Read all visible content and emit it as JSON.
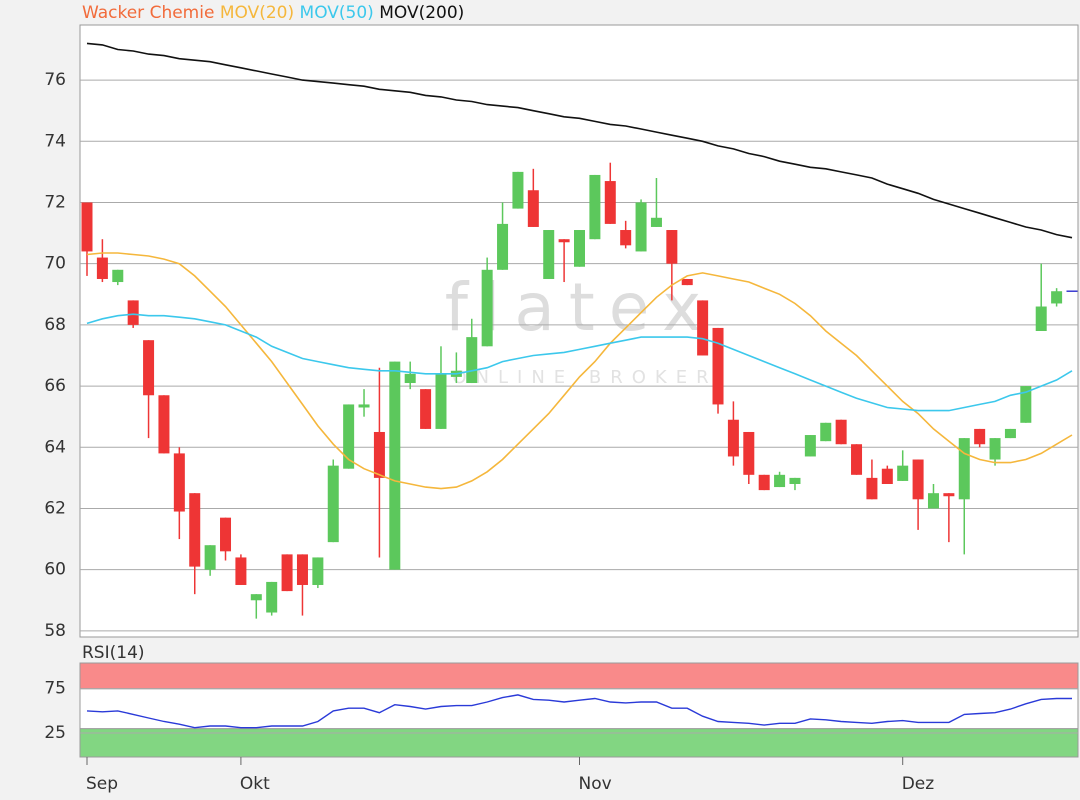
{
  "chart_data": [
    {
      "type": "candlestick",
      "watermark": {
        "text": "flatex",
        "subtext": "ONLINE BROKER"
      },
      "ohlc": {
        "name": "Wacker Chemie",
        "color": "#f26b3a",
        "up_color": "#5cc85c",
        "down_color": "#ee3535",
        "doji_color": "#3a3ad0",
        "open": [
          72.0,
          70.2,
          69.4,
          68.8,
          67.5,
          65.7,
          63.8,
          62.5,
          60.0,
          61.7,
          60.4,
          59.0,
          58.6,
          60.5,
          60.5,
          59.5,
          60.9,
          63.3,
          65.3,
          64.5,
          60.0,
          66.1,
          65.9,
          64.6,
          66.3,
          66.1,
          67.3,
          69.8,
          71.8,
          72.4,
          69.5,
          70.8,
          69.9,
          70.8,
          72.7,
          71.1,
          70.4,
          71.2,
          71.1,
          69.5,
          68.8,
          67.9,
          64.9,
          64.5,
          63.1,
          62.7,
          62.8,
          63.7,
          64.2,
          64.9,
          64.1,
          63.0,
          63.3,
          62.9,
          63.6,
          62.0,
          62.5,
          62.3,
          64.6,
          63.6,
          64.3,
          64.8,
          67.8,
          68.7,
          69.1
        ],
        "high": [
          72.0,
          70.8,
          69.8,
          68.8,
          67.5,
          65.7,
          64.0,
          62.5,
          60.8,
          61.7,
          60.5,
          59.2,
          59.6,
          60.5,
          60.5,
          60.4,
          63.6,
          65.4,
          65.9,
          66.6,
          66.8,
          66.8,
          65.9,
          67.3,
          67.1,
          68.2,
          70.2,
          72.0,
          73.0,
          73.1,
          71.1,
          70.8,
          71.1,
          72.9,
          73.3,
          71.4,
          72.1,
          72.8,
          71.1,
          69.5,
          68.8,
          67.9,
          65.5,
          64.5,
          63.1,
          63.2,
          63.0,
          64.4,
          64.8,
          64.9,
          64.1,
          63.6,
          63.4,
          63.9,
          63.6,
          62.8,
          62.5,
          64.3,
          64.6,
          64.3,
          64.6,
          66.0,
          70.0,
          69.2,
          69.1
        ],
        "low": [
          69.6,
          69.4,
          69.3,
          67.9,
          64.3,
          63.8,
          61.0,
          59.2,
          59.8,
          60.3,
          59.5,
          58.4,
          58.5,
          59.3,
          58.5,
          59.4,
          60.9,
          63.3,
          65.0,
          60.4,
          60.0,
          65.9,
          64.6,
          64.6,
          66.1,
          66.1,
          67.3,
          69.8,
          71.8,
          71.2,
          69.5,
          69.4,
          69.9,
          70.8,
          71.3,
          70.5,
          70.4,
          71.2,
          68.8,
          69.3,
          67.0,
          65.1,
          63.4,
          62.8,
          62.6,
          62.7,
          62.6,
          63.7,
          64.2,
          64.1,
          63.1,
          62.3,
          62.8,
          62.9,
          61.3,
          62.0,
          60.9,
          60.5,
          64.0,
          63.4,
          64.3,
          64.8,
          67.8,
          68.6,
          69.1
        ],
        "close": [
          70.4,
          69.5,
          69.8,
          68.0,
          65.7,
          63.8,
          61.9,
          60.1,
          60.8,
          60.6,
          59.5,
          59.2,
          59.6,
          59.3,
          59.5,
          60.4,
          63.4,
          65.4,
          65.4,
          63.0,
          66.8,
          66.4,
          64.6,
          66.4,
          66.5,
          67.6,
          69.8,
          71.3,
          73.0,
          71.2,
          71.1,
          70.7,
          71.1,
          72.9,
          71.3,
          70.6,
          72.0,
          71.5,
          70.0,
          69.3,
          67.0,
          65.4,
          63.7,
          63.1,
          62.6,
          63.1,
          63.0,
          64.4,
          64.8,
          64.1,
          63.1,
          62.3,
          62.8,
          63.4,
          62.3,
          62.5,
          62.4,
          64.3,
          64.1,
          64.3,
          64.6,
          66.0,
          68.6,
          69.1,
          69.1
        ]
      },
      "series": [
        {
          "name": "MOV(20)",
          "color": "#f5b73c",
          "values": [
            70.3,
            70.35,
            70.35,
            70.3,
            70.25,
            70.15,
            70.0,
            69.6,
            69.1,
            68.6,
            68.0,
            67.4,
            66.8,
            66.1,
            65.4,
            64.7,
            64.1,
            63.6,
            63.3,
            63.1,
            62.9,
            62.8,
            62.7,
            62.65,
            62.7,
            62.9,
            63.2,
            63.6,
            64.1,
            64.6,
            65.1,
            65.7,
            66.3,
            66.8,
            67.4,
            67.9,
            68.4,
            68.9,
            69.3,
            69.6,
            69.7,
            69.6,
            69.5,
            69.4,
            69.2,
            69.0,
            68.7,
            68.3,
            67.8,
            67.4,
            67.0,
            66.5,
            66.0,
            65.5,
            65.1,
            64.6,
            64.2,
            63.8,
            63.6,
            63.5,
            63.5,
            63.6,
            63.8,
            64.1,
            64.4
          ]
        },
        {
          "name": "MOV(50)",
          "color": "#3cc8ec",
          "values": [
            68.05,
            68.2,
            68.3,
            68.35,
            68.3,
            68.3,
            68.25,
            68.2,
            68.1,
            68.0,
            67.8,
            67.6,
            67.3,
            67.1,
            66.9,
            66.8,
            66.7,
            66.6,
            66.55,
            66.5,
            66.5,
            66.45,
            66.4,
            66.4,
            66.4,
            66.5,
            66.6,
            66.8,
            66.9,
            67.0,
            67.05,
            67.1,
            67.2,
            67.3,
            67.4,
            67.5,
            67.6,
            67.6,
            67.6,
            67.6,
            67.55,
            67.4,
            67.2,
            67.0,
            66.8,
            66.6,
            66.4,
            66.2,
            66.0,
            65.8,
            65.6,
            65.45,
            65.3,
            65.25,
            65.2,
            65.2,
            65.2,
            65.3,
            65.4,
            65.5,
            65.7,
            65.8,
            66.0,
            66.2,
            66.5
          ]
        },
        {
          "name": "MOV(200)",
          "color": "#111111",
          "values": [
            77.2,
            77.15,
            77.0,
            76.95,
            76.85,
            76.8,
            76.7,
            76.65,
            76.6,
            76.5,
            76.4,
            76.3,
            76.2,
            76.1,
            76.0,
            75.95,
            75.9,
            75.85,
            75.8,
            75.7,
            75.65,
            75.6,
            75.5,
            75.45,
            75.35,
            75.3,
            75.2,
            75.15,
            75.1,
            75.0,
            74.9,
            74.8,
            74.75,
            74.65,
            74.55,
            74.5,
            74.4,
            74.3,
            74.2,
            74.1,
            74.0,
            73.85,
            73.75,
            73.6,
            73.5,
            73.35,
            73.25,
            73.15,
            73.1,
            73.0,
            72.9,
            72.8,
            72.6,
            72.45,
            72.3,
            72.1,
            71.95,
            71.8,
            71.65,
            71.5,
            71.35,
            71.2,
            71.1,
            70.95,
            70.85
          ]
        }
      ],
      "ylim": [
        57.8,
        77.8
      ],
      "yticks": [
        58,
        60,
        62,
        64,
        66,
        68,
        70,
        72,
        74,
        76
      ],
      "grid": true
    },
    {
      "type": "line",
      "categories": [
        "Sep",
        null,
        null,
        null,
        null,
        null,
        null,
        null,
        null,
        null,
        "Okt",
        null,
        null,
        null,
        null,
        null,
        null,
        null,
        null,
        null,
        null,
        null,
        null,
        null,
        null,
        null,
        null,
        null,
        null,
        null,
        null,
        null,
        "Nov",
        null,
        null,
        null,
        null,
        null,
        null,
        null,
        null,
        null,
        null,
        null,
        null,
        null,
        null,
        null,
        null,
        null,
        null,
        null,
        null,
        "Dez",
        null,
        null,
        null,
        null,
        null,
        null,
        null,
        null,
        null,
        null,
        null
      ],
      "series": [
        {
          "name": "RSI(14)",
          "color": "#2a3ad8",
          "values": [
            50,
            49,
            50,
            46,
            42,
            38,
            35,
            31,
            33,
            33,
            31,
            31,
            33,
            33,
            33,
            38,
            50,
            53,
            53,
            48,
            57,
            55,
            52,
            55,
            56,
            56,
            60,
            65,
            68,
            63,
            62,
            60,
            62,
            64,
            60,
            59,
            60,
            60,
            53,
            53,
            44,
            38,
            37,
            36,
            34,
            36,
            36,
            41,
            40,
            38,
            37,
            36,
            38,
            39,
            37,
            37,
            37,
            46,
            47,
            48,
            52,
            58,
            63,
            64,
            64
          ]
        }
      ],
      "bands": [
        {
          "from": 75,
          "to": 104,
          "color": "#f98a8a"
        },
        {
          "from": -2,
          "to": 30,
          "color": "#82d682"
        }
      ],
      "ylim": [
        -2,
        104
      ],
      "yticks": [
        25,
        75
      ]
    }
  ]
}
